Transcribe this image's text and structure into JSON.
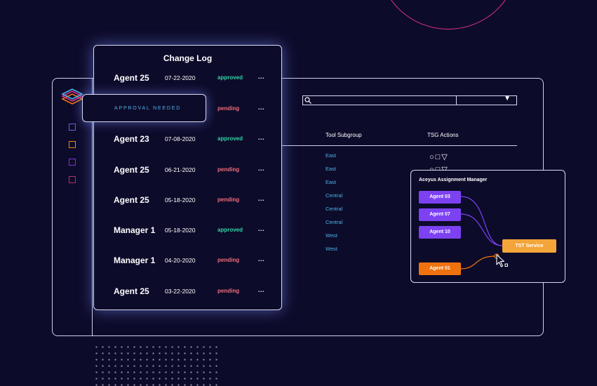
{
  "changelog": {
    "title": "Change Log",
    "rows": [
      {
        "name": "Agent 25",
        "date": "07-22-2020",
        "status": "approved",
        "more": "..."
      },
      {
        "name": "",
        "date": "",
        "status": "pending",
        "more": "..."
      },
      {
        "name": "Agent 23",
        "date": "07-08-2020",
        "status": "approved",
        "more": "..."
      },
      {
        "name": "Agent 25",
        "date": "06-21-2020",
        "status": "pending",
        "more": "..."
      },
      {
        "name": "Agent 25",
        "date": "05-18-2020",
        "status": "pending",
        "more": "..."
      },
      {
        "name": "Manager 1",
        "date": "05-18-2020",
        "status": "approved",
        "more": "..."
      },
      {
        "name": "Manager 1",
        "date": "04-20-2020",
        "status": "pending",
        "more": "..."
      },
      {
        "name": "Agent 25",
        "date": "03-22-2020",
        "status": "pending",
        "more": "..."
      }
    ]
  },
  "approval": {
    "label": "APPROVAL NEEDED"
  },
  "table": {
    "headers": {
      "tool_subgroup": "Tool Subgroup",
      "tsg_actions": "TSG Actions"
    },
    "subgroups": [
      "East",
      "East",
      "East",
      "Central",
      "Central",
      "Central",
      "West",
      "West"
    ],
    "actions": "○□▽",
    "dropdown_arrow": "▼"
  },
  "assignment": {
    "title": "Aceyus Assignment Manager",
    "agents": [
      "Agent 03",
      "Agent 07",
      "Agent 10"
    ],
    "selected_agent": "Agent 01",
    "target": "TST Service"
  },
  "colors": {
    "background": "#0d0b2a",
    "approved": "#2fd6a6",
    "pending": "#f06d7b",
    "link": "#4cb3e8",
    "agent_purple": "#7c42f2",
    "agent_orange": "#f0720f",
    "service_orange": "#f4a53a",
    "accent_pink": "#e0318a"
  },
  "icons": [
    "layers-logo-icon",
    "search-icon",
    "chevron-down-icon",
    "cursor-icon"
  ]
}
